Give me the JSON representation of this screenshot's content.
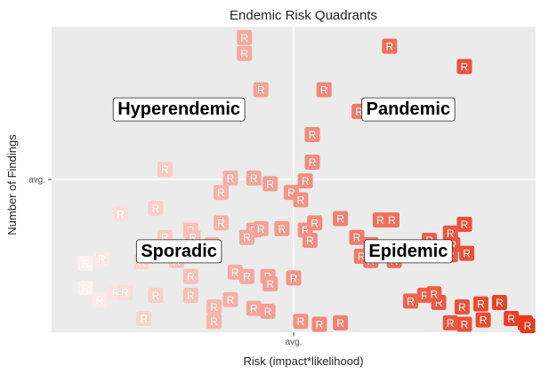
{
  "chart_data": {
    "type": "scatter",
    "title": "Endemic Risk Quadrants",
    "xlabel": "Risk (impact*likelihood)",
    "ylabel": "Number of Findings",
    "xlim": [
      -100,
      100
    ],
    "ylim": [
      -100,
      100
    ],
    "x_ticks": [
      {
        "value": 0,
        "label": "avg."
      }
    ],
    "y_ticks": [
      {
        "value": 0,
        "label": "avg."
      }
    ],
    "marker_label": "R",
    "color_low": "#ffffff",
    "color_high": "#e8391e",
    "panel_background": "#ebebeb",
    "grid_color": "#ffffff",
    "quadrant_labels": [
      {
        "text": "Hyperendemic",
        "x": -49,
        "y": 49
      },
      {
        "text": "Pandemic",
        "x": 49,
        "y": 49
      },
      {
        "text": "Sporadic",
        "x": -49,
        "y": -49
      },
      {
        "text": "Epidemic",
        "x": 49,
        "y": -49
      }
    ],
    "points": [
      {
        "x": -21,
        "y": 98
      },
      {
        "x": -21,
        "y": 87
      },
      {
        "x": 41,
        "y": 92
      },
      {
        "x": 73,
        "y": 78
      },
      {
        "x": -14,
        "y": 62
      },
      {
        "x": 13,
        "y": 62
      },
      {
        "x": 28,
        "y": 47
      },
      {
        "x": 8,
        "y": 31
      },
      {
        "x": 8,
        "y": 12
      },
      {
        "x": -55,
        "y": 7
      },
      {
        "x": -27,
        "y": 1
      },
      {
        "x": -17,
        "y": 1
      },
      {
        "x": -31,
        "y": -9
      },
      {
        "x": -10,
        "y": -3
      },
      {
        "x": -1,
        "y": -9
      },
      {
        "x": 3,
        "y": -14
      },
      {
        "x": 5,
        "y": -1
      },
      {
        "x": -74,
        "y": -24
      },
      {
        "x": -59,
        "y": -20
      },
      {
        "x": -44,
        "y": -35
      },
      {
        "x": -31,
        "y": -30
      },
      {
        "x": -17,
        "y": -35
      },
      {
        "x": -14,
        "y": -34
      },
      {
        "x": -5,
        "y": -34
      },
      {
        "x": 5,
        "y": -35
      },
      {
        "x": 9,
        "y": -30
      },
      {
        "x": 20,
        "y": -27
      },
      {
        "x": 37,
        "y": -28
      },
      {
        "x": 42,
        "y": -28
      },
      {
        "x": -55,
        "y": -40
      },
      {
        "x": -43,
        "y": -40
      },
      {
        "x": -35,
        "y": -45
      },
      {
        "x": -20,
        "y": -40
      },
      {
        "x": 7,
        "y": -42
      },
      {
        "x": 27,
        "y": -40
      },
      {
        "x": 33,
        "y": -45
      },
      {
        "x": 58,
        "y": -42
      },
      {
        "x": 67,
        "y": -37
      },
      {
        "x": 68,
        "y": -45
      },
      {
        "x": 73,
        "y": -31
      },
      {
        "x": 29,
        "y": -53
      },
      {
        "x": 33,
        "y": -56
      },
      {
        "x": 43,
        "y": -56
      },
      {
        "x": 53,
        "y": -50
      },
      {
        "x": 67,
        "y": -52
      },
      {
        "x": 74,
        "y": -51
      },
      {
        "x": -89,
        "y": -58
      },
      {
        "x": -82,
        "y": -55
      },
      {
        "x": -65,
        "y": -57
      },
      {
        "x": -50,
        "y": -56
      },
      {
        "x": -44,
        "y": -67
      },
      {
        "x": -25,
        "y": -64
      },
      {
        "x": -20,
        "y": -67
      },
      {
        "x": -11,
        "y": -67
      },
      {
        "x": -10,
        "y": -72
      },
      {
        "x": 0,
        "y": -68
      },
      {
        "x": -89,
        "y": -75
      },
      {
        "x": -83,
        "y": -83
      },
      {
        "x": -76,
        "y": -78
      },
      {
        "x": -72,
        "y": -78
      },
      {
        "x": -59,
        "y": -80
      },
      {
        "x": -44,
        "y": -80
      },
      {
        "x": -34,
        "y": -88
      },
      {
        "x": -27,
        "y": -83
      },
      {
        "x": -17,
        "y": -89
      },
      {
        "x": -11,
        "y": -91
      },
      {
        "x": -64,
        "y": -96
      },
      {
        "x": -34,
        "y": -98
      },
      {
        "x": 3,
        "y": -98
      },
      {
        "x": 11,
        "y": -100
      },
      {
        "x": 20,
        "y": -99
      },
      {
        "x": 62,
        "y": -85
      },
      {
        "x": 72,
        "y": -88
      },
      {
        "x": 56,
        "y": -80
      },
      {
        "x": 60,
        "y": -79
      },
      {
        "x": 50,
        "y": -84
      },
      {
        "x": 80,
        "y": -86
      },
      {
        "x": 88,
        "y": -85
      },
      {
        "x": 67,
        "y": -99
      },
      {
        "x": 81,
        "y": -97
      },
      {
        "x": 73,
        "y": -100
      },
      {
        "x": 93,
        "y": -96
      },
      {
        "x": 99,
        "y": -99
      },
      {
        "x": 100,
        "y": -101
      }
    ]
  }
}
